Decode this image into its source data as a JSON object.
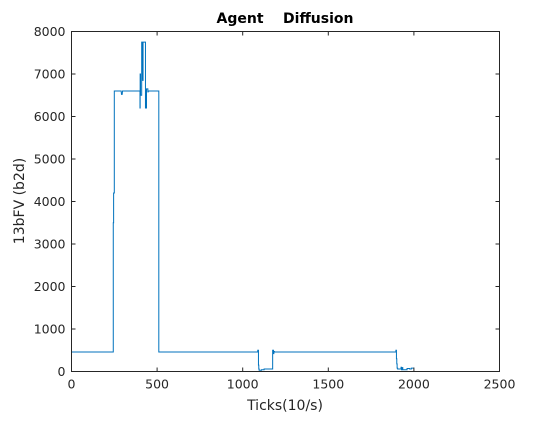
{
  "chart_data": {
    "type": "line",
    "title": "Agent    Diffusion",
    "xlabel": "Ticks(10/s)",
    "ylabel": "13bFV (b2d)",
    "xlim": [
      0,
      2500
    ],
    "ylim": [
      0,
      8000
    ],
    "x_ticks": [
      0,
      500,
      1000,
      1500,
      2000,
      2500
    ],
    "y_ticks": [
      0,
      1000,
      2000,
      3000,
      4000,
      5000,
      6000,
      7000,
      8000
    ],
    "grid": false,
    "legend": "none",
    "series": [
      {
        "color": "#0072bd",
        "x": [
          0,
          244,
          244,
          246,
          246,
          250,
          250,
          290,
          292,
          296,
          298,
          400,
          400,
          401,
          401,
          403,
          403,
          410,
          410,
          412,
          412,
          414,
          414,
          416,
          416,
          418,
          418,
          432,
          432,
          434,
          434,
          436,
          436,
          438,
          438,
          446,
          446,
          448,
          448,
          510,
          510,
          1088,
          1088,
          1092,
          1092,
          1094,
          1094,
          1096,
          1096,
          1110,
          1110,
          1125,
          1125,
          1175,
          1175,
          1180,
          1180,
          1182,
          1182,
          1185,
          1185,
          1895,
          1895,
          1898,
          1898,
          1900,
          1900,
          1902,
          1902,
          1905,
          1905,
          1925,
          1925,
          1928,
          1928,
          1930,
          1930,
          1935,
          1935,
          1960,
          1960,
          1975,
          1975,
          1985,
          1985,
          2000
        ],
        "values": [
          460,
          460,
          3500,
          3500,
          4200,
          4200,
          6600,
          6600,
          6520,
          6520,
          6600,
          6600,
          6200,
          6200,
          7000,
          7000,
          6500,
          6500,
          7750,
          7750,
          6900,
          6900,
          7750,
          7750,
          6850,
          6850,
          7750,
          7750,
          6200,
          6200,
          6600,
          6600,
          6200,
          6200,
          6650,
          6650,
          6580,
          6580,
          6600,
          6600,
          460,
          460,
          500,
          500,
          150,
          150,
          60,
          60,
          30,
          30,
          40,
          40,
          60,
          60,
          500,
          500,
          420,
          420,
          470,
          470,
          460,
          460,
          500,
          500,
          300,
          300,
          180,
          180,
          80,
          80,
          60,
          60,
          100,
          100,
          40,
          40,
          90,
          90,
          40,
          40,
          70,
          70,
          60,
          60,
          80,
          80
        ]
      }
    ]
  }
}
